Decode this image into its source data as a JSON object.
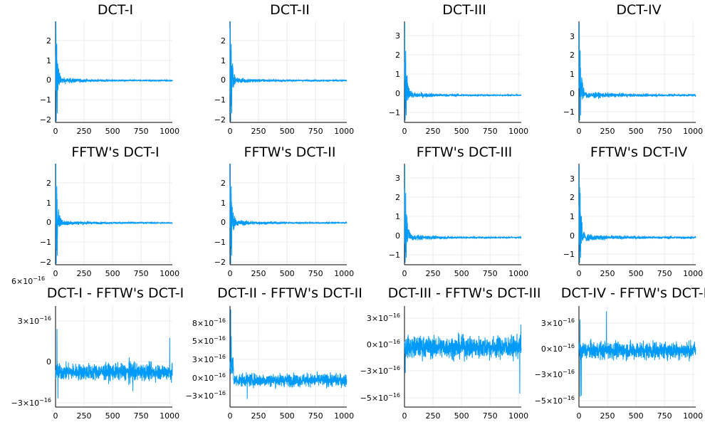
{
  "colors": {
    "series": "#009af9",
    "grid": "#e6e6e6",
    "axis": "#000000"
  },
  "chart_data": [
    {
      "type": "line",
      "title": "DCT-I",
      "xticks": [
        "0",
        "250",
        "500",
        "750",
        "1000"
      ],
      "yticks": [
        "-2",
        "-1",
        "0",
        "1",
        "2"
      ],
      "xlim": [
        0,
        1024
      ],
      "ylim": [
        -2.05,
        2.9
      ],
      "series": [
        {
          "kind": "decay",
          "peak": 2.9,
          "min": -2.0,
          "tail": 0.02
        }
      ]
    },
    {
      "type": "line",
      "title": "DCT-II",
      "xticks": [
        "0",
        "250",
        "500",
        "750",
        "1000"
      ],
      "yticks": [
        "-2",
        "-1",
        "0",
        "1",
        "2"
      ],
      "xlim": [
        0,
        1024
      ],
      "ylim": [
        -2.05,
        2.9
      ],
      "series": [
        {
          "kind": "decay",
          "peak": 2.9,
          "min": -2.0,
          "tail": 0.02
        }
      ]
    },
    {
      "type": "line",
      "title": "DCT-III",
      "xticks": [
        "0",
        "250",
        "500",
        "750",
        "1000"
      ],
      "yticks": [
        "-1",
        "0",
        "1",
        "2",
        "3"
      ],
      "xlim": [
        0,
        1024
      ],
      "ylim": [
        -1.4,
        3.8
      ],
      "series": [
        {
          "kind": "decay",
          "peak": 3.7,
          "min": -1.3,
          "tail": 0.03
        }
      ]
    },
    {
      "type": "line",
      "title": "DCT-IV",
      "xticks": [
        "0",
        "250",
        "500",
        "750",
        "1000"
      ],
      "yticks": [
        "-1",
        "0",
        "1",
        "2",
        "3"
      ],
      "xlim": [
        0,
        1024
      ],
      "ylim": [
        -1.4,
        3.8
      ],
      "series": [
        {
          "kind": "decay",
          "peak": 3.7,
          "min": -1.3,
          "tail": 0.05
        }
      ]
    },
    {
      "type": "line",
      "title": "FFTW's DCT-I",
      "xticks": [
        "0",
        "250",
        "500",
        "750",
        "1000"
      ],
      "yticks": [
        "-2",
        "-1",
        "0",
        "1",
        "2"
      ],
      "xlim": [
        0,
        1024
      ],
      "ylim": [
        -2.05,
        2.9
      ],
      "series": [
        {
          "kind": "decay",
          "peak": 2.9,
          "min": -2.0,
          "tail": 0.02
        }
      ]
    },
    {
      "type": "line",
      "title": "FFTW's DCT-II",
      "xticks": [
        "0",
        "250",
        "500",
        "750",
        "1000"
      ],
      "yticks": [
        "-2",
        "-1",
        "0",
        "1",
        "2"
      ],
      "xlim": [
        0,
        1024
      ],
      "ylim": [
        -2.05,
        2.9
      ],
      "series": [
        {
          "kind": "decay",
          "peak": 2.9,
          "min": -2.0,
          "tail": 0.02
        }
      ]
    },
    {
      "type": "line",
      "title": "FFTW's DCT-III",
      "xticks": [
        "0",
        "250",
        "500",
        "750",
        "1000"
      ],
      "yticks": [
        "-1",
        "0",
        "1",
        "2",
        "3"
      ],
      "xlim": [
        0,
        1024
      ],
      "ylim": [
        -1.4,
        3.8
      ],
      "series": [
        {
          "kind": "decay",
          "peak": 3.7,
          "min": -1.3,
          "tail": 0.03
        }
      ]
    },
    {
      "type": "line",
      "title": "FFTW's DCT-IV",
      "xticks": [
        "0",
        "250",
        "500",
        "750",
        "1000"
      ],
      "yticks": [
        "-1",
        "0",
        "1",
        "2",
        "3"
      ],
      "xlim": [
        0,
        1024
      ],
      "ylim": [
        -1.4,
        3.8
      ],
      "series": [
        {
          "kind": "decay",
          "peak": 3.7,
          "min": -1.3,
          "tail": 0.05
        }
      ]
    },
    {
      "type": "line",
      "title": "DCT-I - FFTW's DCT-I",
      "topnote": "6×10⁻¹⁶",
      "xticks": [
        "0",
        "250",
        "500",
        "750",
        "1000"
      ],
      "yticks": [
        {
          "m": "-3",
          "e": "-16"
        },
        {
          "m": "0",
          "e": ""
        },
        {
          "m": "3",
          "e": "-16"
        }
      ],
      "xlim": [
        0,
        1024
      ],
      "ylim": [
        -3.2e-16,
        6e-16
      ],
      "series": [
        {
          "kind": "noise",
          "center": 0,
          "amp": 7e-17,
          "spikeMax": 4e-16,
          "spikeMin": -2.4e-16
        }
      ]
    },
    {
      "type": "line",
      "title": "DCT-II - FFTW's DCT-II",
      "xticks": [
        "0",
        "250",
        "500",
        "750",
        "1000"
      ],
      "yticks": [
        {
          "m": "-3",
          "e": "-16"
        },
        {
          "m": "0",
          "e": "-16"
        },
        {
          "m": "3",
          "e": "-16"
        },
        {
          "m": "5",
          "e": "-16"
        },
        {
          "m": "8",
          "e": "-16"
        }
      ],
      "xlim": [
        0,
        1024
      ],
      "ylim": [
        -4e-16,
        1.1e-15
      ],
      "series": [
        {
          "kind": "noise",
          "center": 0,
          "amp": 9e-17,
          "spikeMax": 1.05e-15,
          "spikeMin": -2.8e-16
        }
      ]
    },
    {
      "type": "line",
      "title": "DCT-III - FFTW's DCT-III",
      "xticks": [
        "0",
        "250",
        "500",
        "750",
        "1000"
      ],
      "yticks": [
        {
          "m": "-5",
          "e": "-16"
        },
        {
          "m": "-3",
          "e": "-16"
        },
        {
          "m": "0",
          "e": "-16"
        },
        {
          "m": "3",
          "e": "-16"
        }
      ],
      "xlim": [
        0,
        1024
      ],
      "ylim": [
        -5.8e-16,
        4e-16
      ],
      "series": [
        {
          "kind": "noise",
          "center": 0,
          "amp": 1e-16,
          "spikeMax": 2.5e-16,
          "spikeMin": -4.5e-16
        }
      ]
    },
    {
      "type": "line",
      "title": "DCT-IV - FFTW's DCT-IV",
      "xticks": [
        "0",
        "250",
        "500",
        "750",
        "1000"
      ],
      "yticks": [
        {
          "m": "-5",
          "e": "-16"
        },
        {
          "m": "-3",
          "e": "-16"
        },
        {
          "m": "0",
          "e": "-16"
        },
        {
          "m": "3",
          "e": "-16"
        }
      ],
      "xlim": [
        0,
        1024
      ],
      "ylim": [
        -5.5e-16,
        4.3e-16
      ],
      "series": [
        {
          "kind": "noise",
          "center": 0,
          "amp": 8e-17,
          "spikeMax": 3.8e-16,
          "spikeMin": -4.5e-16
        }
      ]
    }
  ]
}
